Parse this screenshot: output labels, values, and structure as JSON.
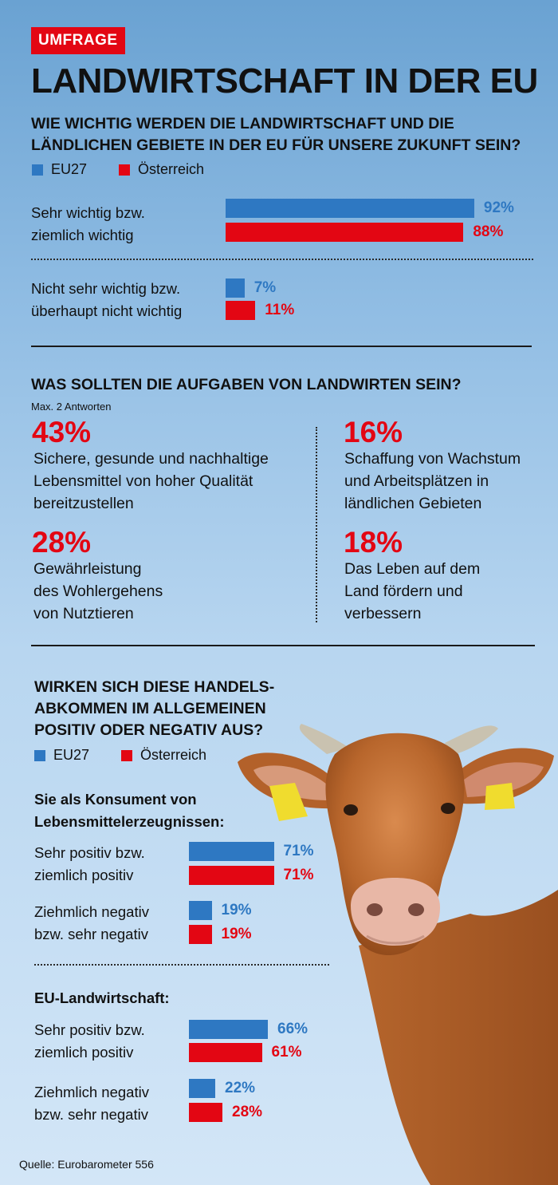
{
  "badge": "UMFRAGE",
  "title": "LANDWIRTSCHAFT IN DER EU",
  "colors": {
    "eu": "#2e78c2",
    "at": "#e30613"
  },
  "legend": {
    "eu": "EU27",
    "at": "Österreich"
  },
  "q1": {
    "title_line1": "WIE WICHTIG WERDEN DIE LANDWIRTSCHAFT UND DIE",
    "title_line2": "LÄNDLICHEN GEBIETE IN DER EU FÜR UNSERE ZUKUNFT SEIN?",
    "rows": [
      {
        "label_line1": "Sehr wichtig bzw.",
        "label_line2": "ziemlich wichtig",
        "eu": 92,
        "at": 88,
        "eu_text": "92%",
        "at_text": "88%"
      },
      {
        "label_line1": "Nicht sehr wichtig bzw.",
        "label_line2": "überhaupt nicht wichtig",
        "eu": 7,
        "at": 11,
        "eu_text": "7%",
        "at_text": "11%"
      }
    ]
  },
  "q2": {
    "title": "WAS SOLLTEN DIE AUFGABEN VON LANDWIRTEN SEIN?",
    "note": "Max. 2 Antworten",
    "items": [
      {
        "pct": "43%",
        "lines": [
          "Sichere, gesunde und nachhaltige",
          "Lebensmittel von hoher Qualität",
          "bereitzustellen"
        ]
      },
      {
        "pct": "16%",
        "lines": [
          "Schaffung von Wachstum",
          "und Arbeitsplätzen in",
          "ländlichen Gebieten"
        ]
      },
      {
        "pct": "28%",
        "lines": [
          "Gewährleistung",
          "des Wohlergehens",
          "von Nutztieren"
        ]
      },
      {
        "pct": "18%",
        "lines": [
          "Das Leben auf dem",
          "Land fördern und",
          "verbessern"
        ]
      }
    ]
  },
  "q3": {
    "title_line1": "WIRKEN SICH DIESE HANDELS-",
    "title_line2": "ABKOMMEN IM ALLGEMEINEN",
    "title_line3": "POSITIV ODER NEGATIV AUS?",
    "groups": [
      {
        "heading_line1": "Sie als Konsument von",
        "heading_line2": "Lebensmittelerzeugnissen:",
        "rows": [
          {
            "label_line1": "Sehr positiv bzw.",
            "label_line2": "ziemlich positiv",
            "eu": 71,
            "at": 71,
            "eu_text": "71%",
            "at_text": "71%"
          },
          {
            "label_line1": "Ziehmlich negativ",
            "label_line2": "bzw. sehr negativ",
            "eu": 19,
            "at": 19,
            "eu_text": "19%",
            "at_text": "19%"
          }
        ]
      },
      {
        "heading_line1": "EU-Landwirtschaft:",
        "rows": [
          {
            "label_line1": "Sehr positiv bzw.",
            "label_line2": "ziemlich positiv",
            "eu": 66,
            "at": 61,
            "eu_text": "66%",
            "at_text": "61%"
          },
          {
            "label_line1": "Ziehmlich negativ",
            "label_line2": "bzw. sehr negativ",
            "eu": 22,
            "at": 28,
            "eu_text": "22%",
            "at_text": "28%"
          }
        ]
      }
    ]
  },
  "source": "Quelle: Eurobarometer 556",
  "chart_data": [
    {
      "type": "bar",
      "title": "WIE WICHTIG WERDEN DIE LANDWIRTSCHAFT UND DIE LÄNDLICHEN GEBIETE IN DER EU FÜR UNSERE ZUKUNFT SEIN?",
      "categories": [
        "Sehr wichtig bzw. ziemlich wichtig",
        "Nicht sehr wichtig bzw. überhaupt nicht wichtig"
      ],
      "series": [
        {
          "name": "EU27",
          "values": [
            92,
            7
          ]
        },
        {
          "name": "Österreich",
          "values": [
            88,
            11
          ]
        }
      ],
      "ylim": [
        0,
        100
      ]
    },
    {
      "type": "table",
      "title": "WAS SOLLTEN DIE AUFGABEN VON LANDWIRTEN SEIN?",
      "values": [
        43,
        16,
        28,
        18
      ]
    },
    {
      "type": "bar",
      "title": "Sie als Konsument von Lebensmittelerzeugnissen:",
      "categories": [
        "Sehr positiv bzw. ziemlich positiv",
        "Ziehmlich negativ bzw. sehr negativ"
      ],
      "series": [
        {
          "name": "EU27",
          "values": [
            71,
            19
          ]
        },
        {
          "name": "Österreich",
          "values": [
            71,
            19
          ]
        }
      ],
      "ylim": [
        0,
        100
      ]
    },
    {
      "type": "bar",
      "title": "EU-Landwirtschaft:",
      "categories": [
        "Sehr positiv bzw. ziemlich positiv",
        "Ziehmlich negativ bzw. sehr negativ"
      ],
      "series": [
        {
          "name": "EU27",
          "values": [
            66,
            22
          ]
        },
        {
          "name": "Österreich",
          "values": [
            61,
            28
          ]
        }
      ],
      "ylim": [
        0,
        100
      ]
    }
  ]
}
